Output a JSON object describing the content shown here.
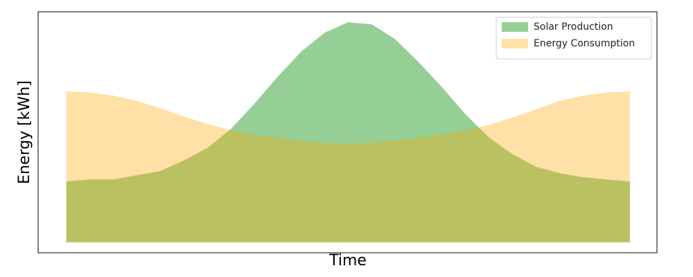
{
  "chart_data": {
    "type": "area",
    "x_label": "Time",
    "y_label": "Energy [kWh]",
    "x": [
      0,
      1,
      2,
      3,
      4,
      5,
      6,
      7,
      8,
      9,
      10,
      11,
      12,
      13,
      14,
      15,
      16,
      17,
      18,
      19,
      20,
      21,
      22,
      23,
      24
    ],
    "series": [
      {
        "name": "Solar Production",
        "color": "#2ca02c",
        "alpha": 0.5,
        "values": [
          2.9,
          3.0,
          3.0,
          3.2,
          3.4,
          3.9,
          4.5,
          5.4,
          6.6,
          7.9,
          9.1,
          10.0,
          10.5,
          10.4,
          9.7,
          8.6,
          7.4,
          6.1,
          5.0,
          4.2,
          3.6,
          3.3,
          3.1,
          3.0,
          2.9
        ]
      },
      {
        "name": "Energy Consumption",
        "color": "#ffa500",
        "alpha": 0.35,
        "values": [
          7.2,
          7.15,
          7.0,
          6.75,
          6.4,
          6.0,
          5.65,
          5.35,
          5.15,
          5.0,
          4.85,
          4.75,
          4.7,
          4.75,
          4.85,
          5.0,
          5.15,
          5.35,
          5.6,
          5.95,
          6.35,
          6.75,
          7.0,
          7.15,
          7.2
        ]
      }
    ],
    "xlim": [
      -1.2,
      25.15
    ],
    "ylim": [
      -0.5,
      11
    ],
    "legend": "upper right"
  }
}
